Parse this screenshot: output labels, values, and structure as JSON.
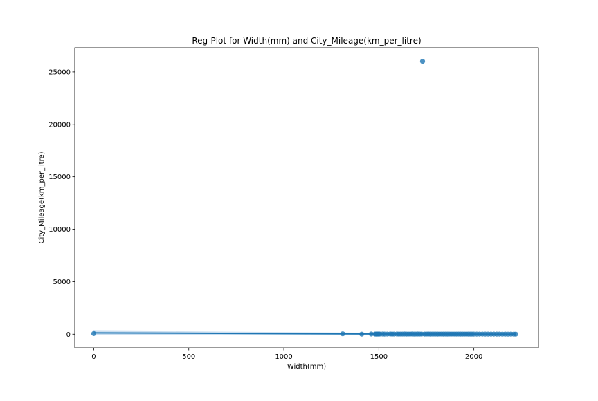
{
  "chart_data": {
    "type": "scatter",
    "title": "Reg-Plot for Width(mm) and City_Mileage(km_per_litre)",
    "xlabel": "Width(mm)",
    "ylabel": "City_Mileage(km_per_litre)",
    "xlim": [
      -100,
      2340
    ],
    "ylim": [
      -1300,
      27300
    ],
    "xticks": [
      0,
      500,
      1000,
      1500,
      2000
    ],
    "yticks": [
      0,
      5000,
      10000,
      15000,
      20000,
      25000
    ],
    "grid": false,
    "legend": "none",
    "colors": {
      "points": "#1f77b4",
      "regression_line": "#1f77b4",
      "confidence_band": "#a6c8e6"
    },
    "regression": {
      "x": [
        0,
        2220
      ],
      "y": [
        125,
        -20
      ],
      "ci_upper": [
        320,
        60
      ],
      "ci_lower": [
        -70,
        -100
      ]
    },
    "points": [
      {
        "x": 0,
        "y": 60
      },
      {
        "x": 1310,
        "y": 40
      },
      {
        "x": 1410,
        "y": 5
      },
      {
        "x": 1730,
        "y": 26000
      },
      {
        "x": 1460,
        "y": 20
      },
      {
        "x": 1480,
        "y": 15
      },
      {
        "x": 1485,
        "y": 10
      },
      {
        "x": 1490,
        "y": 18
      },
      {
        "x": 1495,
        "y": 12
      },
      {
        "x": 1500,
        "y": 20
      },
      {
        "x": 1505,
        "y": 14
      },
      {
        "x": 1520,
        "y": 16
      },
      {
        "x": 1530,
        "y": 12
      },
      {
        "x": 1545,
        "y": 15
      },
      {
        "x": 1560,
        "y": 18
      },
      {
        "x": 1570,
        "y": 10
      },
      {
        "x": 1580,
        "y": 14
      },
      {
        "x": 1595,
        "y": 16
      },
      {
        "x": 1605,
        "y": 12
      },
      {
        "x": 1615,
        "y": 15
      },
      {
        "x": 1625,
        "y": 14
      },
      {
        "x": 1635,
        "y": 18
      },
      {
        "x": 1645,
        "y": 11
      },
      {
        "x": 1655,
        "y": 13
      },
      {
        "x": 1665,
        "y": 15
      },
      {
        "x": 1675,
        "y": 17
      },
      {
        "x": 1685,
        "y": 12
      },
      {
        "x": 1695,
        "y": 14
      },
      {
        "x": 1705,
        "y": 16
      },
      {
        "x": 1715,
        "y": 13
      },
      {
        "x": 1725,
        "y": 15
      },
      {
        "x": 1740,
        "y": 12
      },
      {
        "x": 1750,
        "y": 14
      },
      {
        "x": 1760,
        "y": 16
      },
      {
        "x": 1770,
        "y": 12
      },
      {
        "x": 1780,
        "y": 14
      },
      {
        "x": 1790,
        "y": 13
      },
      {
        "x": 1800,
        "y": 15
      },
      {
        "x": 1810,
        "y": 12
      },
      {
        "x": 1820,
        "y": 14
      },
      {
        "x": 1830,
        "y": 13
      },
      {
        "x": 1840,
        "y": 12
      },
      {
        "x": 1850,
        "y": 14
      },
      {
        "x": 1860,
        "y": 11
      },
      {
        "x": 1870,
        "y": 13
      },
      {
        "x": 1880,
        "y": 12
      },
      {
        "x": 1890,
        "y": 14
      },
      {
        "x": 1900,
        "y": 11
      },
      {
        "x": 1910,
        "y": 12
      },
      {
        "x": 1920,
        "y": 13
      },
      {
        "x": 1930,
        "y": 11
      },
      {
        "x": 1940,
        "y": 12
      },
      {
        "x": 1950,
        "y": 10
      },
      {
        "x": 1960,
        "y": 12
      },
      {
        "x": 1970,
        "y": 11
      },
      {
        "x": 1980,
        "y": 10
      },
      {
        "x": 1990,
        "y": 12
      },
      {
        "x": 2000,
        "y": 10
      },
      {
        "x": 2015,
        "y": 11
      },
      {
        "x": 2030,
        "y": 9
      },
      {
        "x": 2045,
        "y": 10
      },
      {
        "x": 2060,
        "y": 9
      },
      {
        "x": 2075,
        "y": 10
      },
      {
        "x": 2090,
        "y": 8
      },
      {
        "x": 2105,
        "y": 9
      },
      {
        "x": 2120,
        "y": 8
      },
      {
        "x": 2135,
        "y": 9
      },
      {
        "x": 2150,
        "y": 7
      },
      {
        "x": 2165,
        "y": 8
      },
      {
        "x": 2180,
        "y": 7
      },
      {
        "x": 2195,
        "y": 8
      },
      {
        "x": 2210,
        "y": 6
      },
      {
        "x": 2220,
        "y": 7
      }
    ]
  }
}
